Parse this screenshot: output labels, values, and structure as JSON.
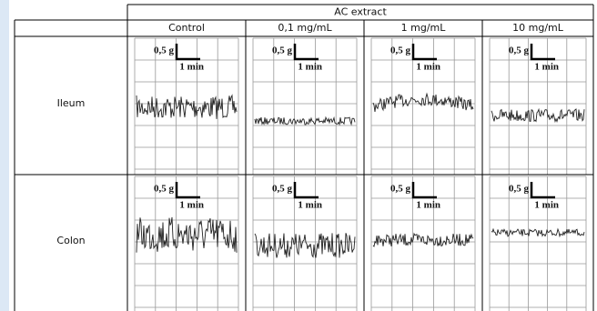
{
  "header": {
    "group": "AC extract",
    "columns": [
      "Control",
      "0,1 mg/mL",
      "1 mg/mL",
      "10 mg/mL"
    ]
  },
  "rows": [
    {
      "label": "Ileum",
      "cells": [
        {
          "force": "0,5 g",
          "time": "1 min"
        },
        {
          "force": "0,5 g",
          "time": "1 min"
        },
        {
          "force": "0,5 g",
          "time": "1 min"
        },
        {
          "force": "0,5 g",
          "time": "1 min"
        }
      ]
    },
    {
      "label": "Colon",
      "cells": [
        {
          "force": "0,5 g",
          "time": "1 min"
        },
        {
          "force": "0,5 g",
          "time": "1 min"
        },
        {
          "force": "0,5 g",
          "time": "1 min"
        },
        {
          "force": "0,5 g",
          "time": "1 min"
        }
      ]
    }
  ]
}
